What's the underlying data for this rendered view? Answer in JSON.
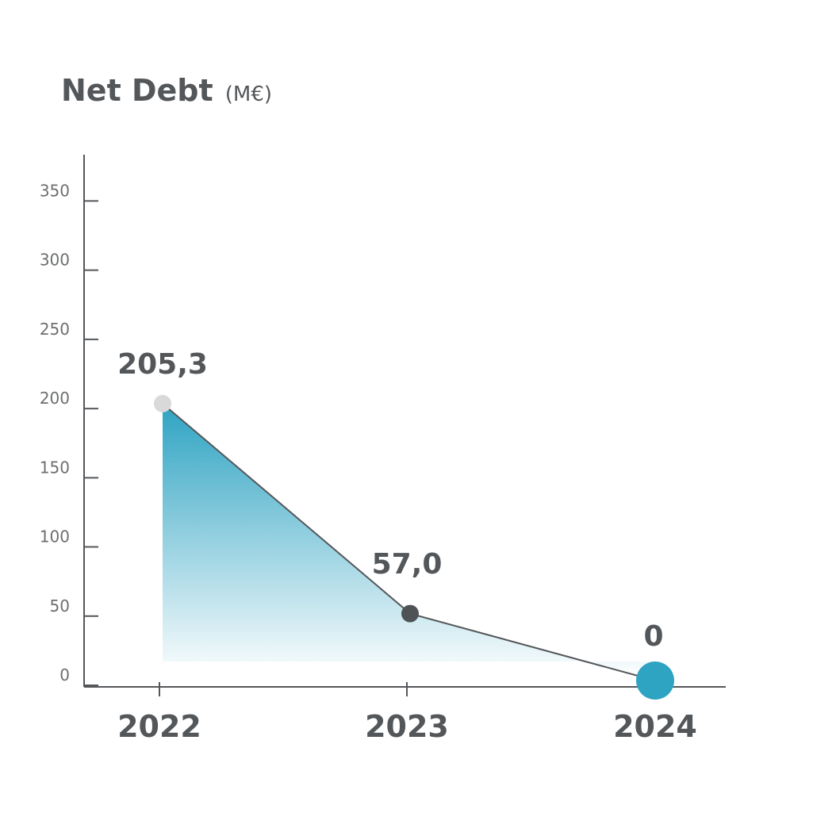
{
  "chart_data": {
    "type": "area",
    "title": "Net Debt",
    "unit": "(M€)",
    "xlabel": "",
    "ylabel": "",
    "categories": [
      "2022",
      "2023",
      "2024"
    ],
    "series": [
      {
        "values": [
          205.3,
          57.0,
          0
        ],
        "data_labels": [
          "205,3",
          "57,0",
          "0"
        ],
        "point_colors": [
          "#d9d9d9",
          "#4f5356",
          "#2ea3c2"
        ]
      }
    ],
    "yticks": [
      0,
      50,
      100,
      150,
      200,
      250,
      300,
      350
    ],
    "ylim": [
      0,
      385
    ],
    "grid": false,
    "legend": "none",
    "colors": {
      "axis": "#54575a",
      "line": "#54575a",
      "fill_top": "#2ea3c2",
      "fill_bottom": "#ffffff",
      "text": "#54575a",
      "tick_text": "#6c6e70"
    }
  }
}
